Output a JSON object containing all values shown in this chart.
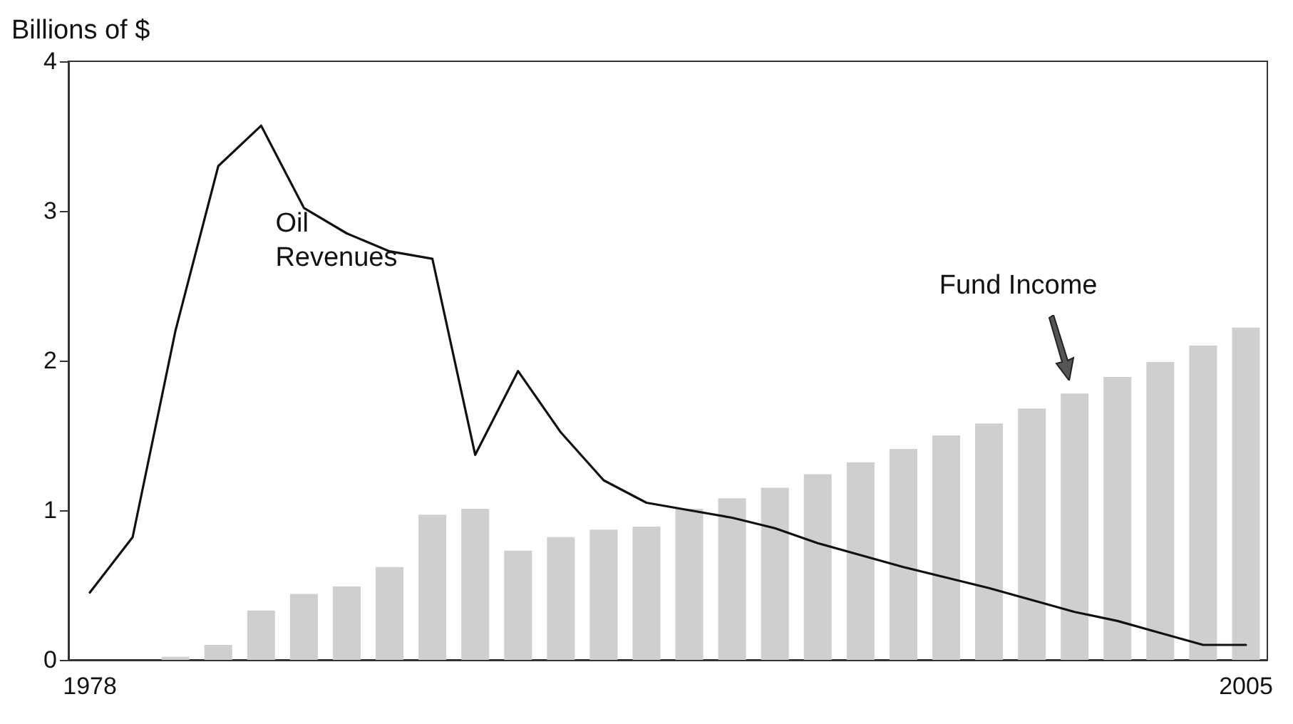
{
  "chart_data": {
    "type": "bar",
    "ylabel": "Billions of $",
    "categories": [
      "1978",
      null,
      null,
      null,
      null,
      null,
      null,
      null,
      null,
      null,
      null,
      null,
      null,
      null,
      null,
      null,
      null,
      null,
      null,
      null,
      null,
      null,
      null,
      null,
      null,
      null,
      null,
      "2005"
    ],
    "series": [
      {
        "name": "Oil Revenues",
        "type": "line",
        "color": "#111111",
        "values": [
          0.45,
          0.82,
          2.2,
          3.3,
          3.57,
          3.02,
          2.85,
          2.73,
          2.68,
          1.37,
          1.93,
          1.52,
          1.2,
          1.05,
          1.0,
          0.95,
          0.88,
          0.78,
          0.7,
          0.62,
          0.55,
          0.48,
          0.4,
          0.32,
          0.26,
          0.18,
          0.1,
          0.1
        ]
      },
      {
        "name": "Fund Income",
        "color": "#cfcfcf",
        "values": [
          0,
          0,
          0.02,
          0.1,
          0.33,
          0.44,
          0.49,
          0.62,
          0.97,
          1.01,
          0.73,
          0.82,
          0.87,
          0.89,
          1.01,
          1.08,
          1.15,
          1.24,
          1.32,
          1.41,
          1.5,
          1.58,
          1.68,
          1.78,
          1.89,
          1.99,
          2.1,
          2.22
        ]
      }
    ],
    "ylim": [
      0,
      4
    ],
    "yticks": [
      0,
      1,
      2,
      3,
      4
    ],
    "grid": false,
    "legend": false,
    "marker": "none",
    "line_style": "solid"
  }
}
